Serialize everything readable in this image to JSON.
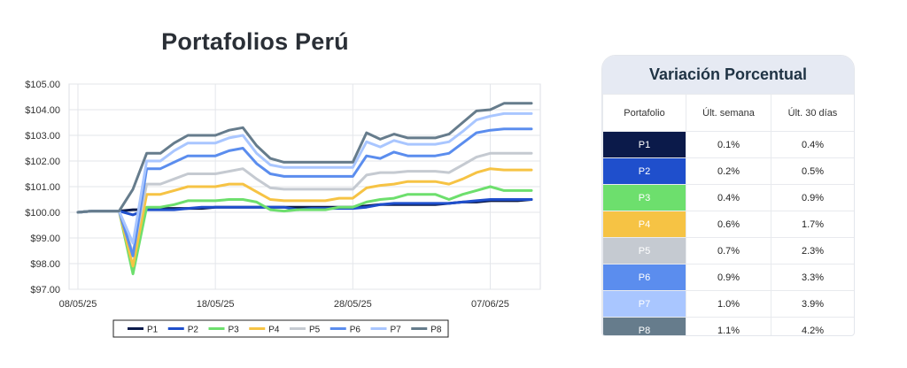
{
  "chart_data": {
    "type": "line",
    "title": "Portafolios Perú",
    "xlabel": "",
    "ylabel": "",
    "ylim": [
      97,
      105
    ],
    "yticks": [
      "$97.00",
      "$98.00",
      "$99.00",
      "$100.00",
      "$101.00",
      "$102.00",
      "$103.00",
      "$104.00",
      "$105.00"
    ],
    "xticks": [
      {
        "index": 0,
        "label": "08/05/25"
      },
      {
        "index": 10,
        "label": "18/05/25"
      },
      {
        "index": 20,
        "label": "28/05/25"
      },
      {
        "index": 30,
        "label": "07/06/25"
      }
    ],
    "legend_position": "bottom",
    "series": [
      {
        "name": "P1",
        "color": "#0b1a4a",
        "values": [
          100.0,
          100.05,
          100.05,
          100.05,
          100.1,
          100.1,
          100.15,
          100.15,
          100.15,
          100.15,
          100.2,
          100.2,
          100.2,
          100.2,
          100.2,
          100.2,
          100.2,
          100.2,
          100.2,
          100.2,
          100.2,
          100.25,
          100.3,
          100.3,
          100.3,
          100.3,
          100.3,
          100.35,
          100.4,
          100.4,
          100.45,
          100.45,
          100.45,
          100.5
        ]
      },
      {
        "name": "P2",
        "color": "#1f4fcc",
        "values": [
          100.0,
          100.05,
          100.05,
          100.05,
          99.9,
          100.1,
          100.1,
          100.1,
          100.15,
          100.2,
          100.2,
          100.2,
          100.2,
          100.2,
          100.2,
          100.2,
          100.1,
          100.15,
          100.15,
          100.15,
          100.15,
          100.2,
          100.3,
          100.35,
          100.35,
          100.35,
          100.35,
          100.35,
          100.4,
          100.45,
          100.5,
          100.5,
          100.5,
          100.5
        ]
      },
      {
        "name": "P3",
        "color": "#6ddf6d",
        "values": [
          100.0,
          100.05,
          100.05,
          100.05,
          97.6,
          100.2,
          100.2,
          100.3,
          100.45,
          100.45,
          100.45,
          100.5,
          100.5,
          100.4,
          100.1,
          100.05,
          100.1,
          100.1,
          100.1,
          100.2,
          100.2,
          100.4,
          100.5,
          100.55,
          100.7,
          100.7,
          100.7,
          100.5,
          100.7,
          100.85,
          101.0,
          100.85,
          100.85,
          100.85
        ]
      },
      {
        "name": "P4",
        "color": "#f6c344",
        "values": [
          100.0,
          100.05,
          100.05,
          100.05,
          97.9,
          100.7,
          100.7,
          100.85,
          101.0,
          101.0,
          101.0,
          101.1,
          101.1,
          100.8,
          100.5,
          100.45,
          100.45,
          100.45,
          100.45,
          100.55,
          100.55,
          100.95,
          101.05,
          101.1,
          101.2,
          101.2,
          101.2,
          101.1,
          101.3,
          101.55,
          101.7,
          101.65,
          101.65,
          101.65
        ]
      },
      {
        "name": "P5",
        "color": "#c5cad1",
        "values": [
          100.0,
          100.05,
          100.05,
          100.05,
          98.4,
          101.1,
          101.1,
          101.3,
          101.5,
          101.5,
          101.5,
          101.6,
          101.7,
          101.3,
          100.95,
          100.9,
          100.9,
          100.9,
          100.9,
          100.9,
          100.9,
          101.45,
          101.55,
          101.55,
          101.6,
          101.6,
          101.6,
          101.55,
          101.85,
          102.15,
          102.3,
          102.3,
          102.3,
          102.3
        ]
      },
      {
        "name": "P6",
        "color": "#5b8dee",
        "values": [
          100.0,
          100.05,
          100.05,
          100.05,
          98.3,
          101.7,
          101.7,
          101.95,
          102.2,
          102.2,
          102.2,
          102.4,
          102.5,
          101.9,
          101.5,
          101.4,
          101.4,
          101.4,
          101.4,
          101.4,
          101.4,
          102.2,
          102.1,
          102.35,
          102.2,
          102.2,
          102.2,
          102.3,
          102.7,
          103.1,
          103.2,
          103.25,
          103.25,
          103.25
        ]
      },
      {
        "name": "P7",
        "color": "#a9c6ff",
        "values": [
          100.0,
          100.05,
          100.05,
          100.05,
          98.8,
          102.0,
          102.0,
          102.4,
          102.7,
          102.7,
          102.7,
          102.9,
          103.0,
          102.3,
          101.85,
          101.75,
          101.75,
          101.75,
          101.75,
          101.75,
          101.75,
          102.75,
          102.55,
          102.8,
          102.65,
          102.65,
          102.65,
          102.75,
          103.15,
          103.6,
          103.75,
          103.85,
          103.85,
          103.85
        ]
      },
      {
        "name": "P8",
        "color": "#667c8c",
        "values": [
          100.0,
          100.05,
          100.05,
          100.05,
          100.9,
          102.3,
          102.3,
          102.7,
          103.0,
          103.0,
          103.0,
          103.2,
          103.3,
          102.6,
          102.1,
          101.95,
          101.95,
          101.95,
          101.95,
          101.95,
          101.95,
          103.1,
          102.85,
          103.05,
          102.9,
          102.9,
          102.9,
          103.05,
          103.5,
          103.95,
          104.0,
          104.25,
          104.25,
          104.25
        ]
      }
    ]
  },
  "table": {
    "title": "Variación Porcentual",
    "headers": [
      "Portafolio",
      "Últ. semana",
      "Últ. 30 días"
    ],
    "rows": [
      {
        "name": "P1",
        "color": "#0b1a4a",
        "week": "0.1%",
        "month": "0.4%"
      },
      {
        "name": "P2",
        "color": "#1f4fcc",
        "week": "0.2%",
        "month": "0.5%"
      },
      {
        "name": "P3",
        "color": "#6ddf6d",
        "week": "0.4%",
        "month": "0.9%"
      },
      {
        "name": "P4",
        "color": "#f6c344",
        "week": "0.6%",
        "month": "1.7%"
      },
      {
        "name": "P5",
        "color": "#c5cad1",
        "week": "0.7%",
        "month": "2.3%"
      },
      {
        "name": "P6",
        "color": "#5b8dee",
        "week": "0.9%",
        "month": "3.3%"
      },
      {
        "name": "P7",
        "color": "#a9c6ff",
        "week": "1.0%",
        "month": "3.9%"
      },
      {
        "name": "P8",
        "color": "#667c8c",
        "week": "1.1%",
        "month": "4.2%"
      }
    ]
  }
}
